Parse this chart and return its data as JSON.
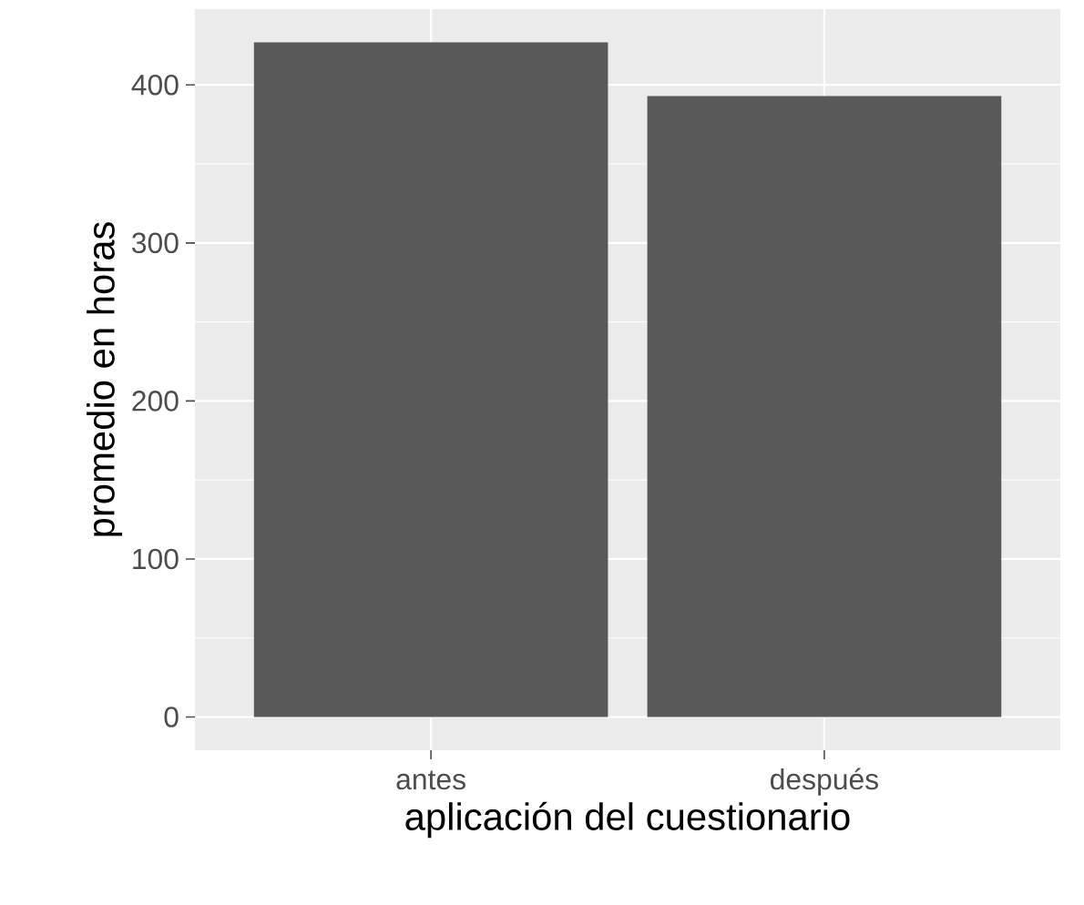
{
  "chart_data": {
    "type": "bar",
    "xlabel": "aplicación del cuestionario",
    "ylabel": "promedio en horas",
    "categories": [
      "antes",
      "después"
    ],
    "values": [
      427,
      393
    ],
    "color": "#595959",
    "ylim": [
      -21,
      448
    ],
    "yticks": [
      0,
      100,
      200,
      300,
      400
    ],
    "grid": true
  }
}
